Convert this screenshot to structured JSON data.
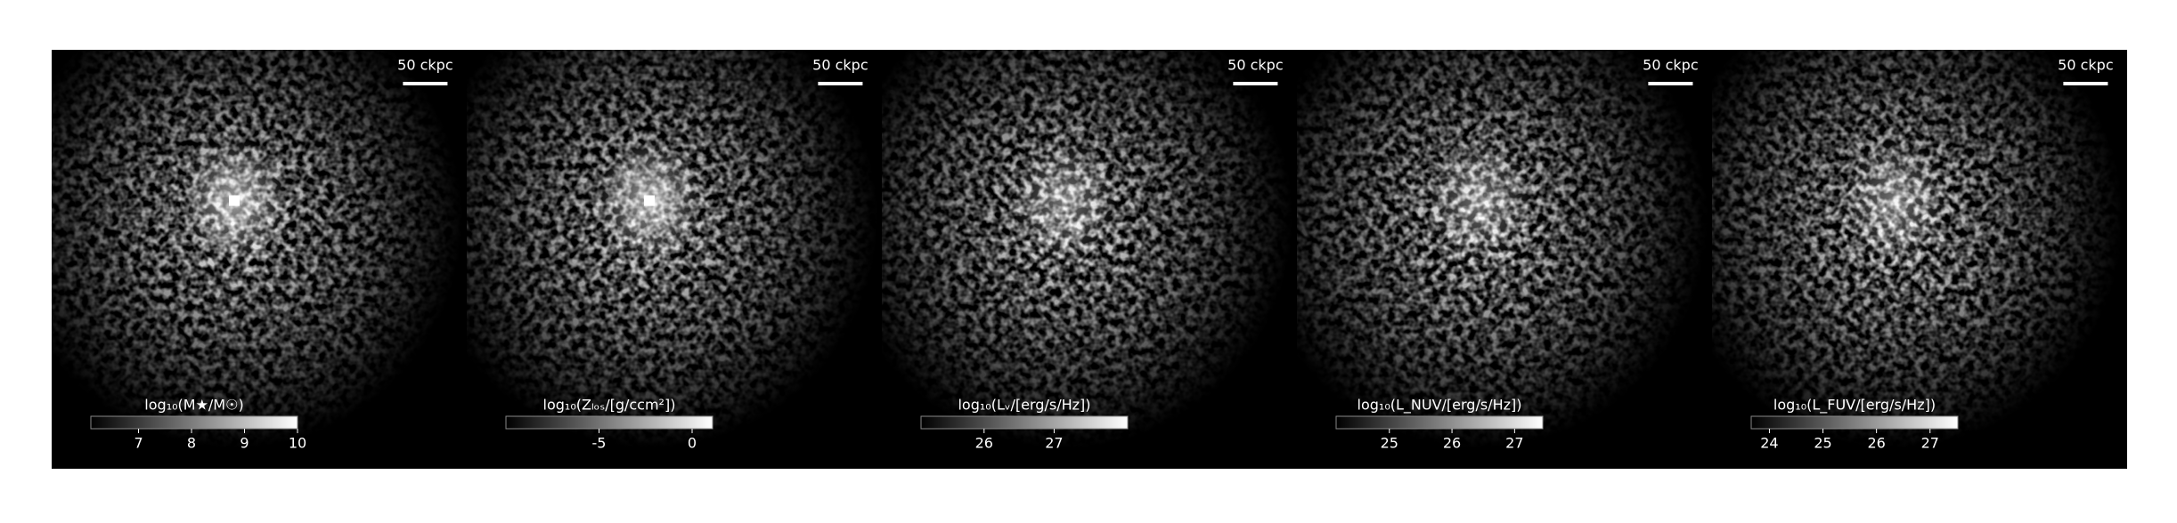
{
  "chart_data": [
    {
      "type": "image",
      "scale_label": "50 ckpc",
      "colorbar_label": "log₁₀(M★/M☉)",
      "clim": [
        6.1,
        10
      ],
      "cticks": [
        7,
        8,
        9,
        10
      ],
      "core": true
    },
    {
      "type": "image",
      "scale_label": "50 ckpc",
      "colorbar_label": "log₁₀(Zₗₒₛ/[g/ccm²])",
      "clim": [
        -10,
        1.1
      ],
      "cticks": [
        -5,
        0
      ],
      "core": true
    },
    {
      "type": "image",
      "scale_label": "50 ckpc",
      "colorbar_label": "log₁₀(Lᵥ/[erg/s/Hz])",
      "clim": [
        25.1,
        28.05
      ],
      "cticks": [
        26,
        27
      ],
      "core": false
    },
    {
      "type": "image",
      "scale_label": "50 ckpc",
      "colorbar_label": "log₁₀(L_NUV/[erg/s/Hz])",
      "clim": [
        24.15,
        27.45
      ],
      "cticks": [
        25,
        26,
        27
      ],
      "core": false
    },
    {
      "type": "image",
      "scale_label": "50 ckpc",
      "colorbar_label": "log₁₀(L_FUV/[erg/s/Hz])",
      "clim": [
        23.66,
        27.52
      ],
      "cticks": [
        24,
        25,
        26,
        27
      ],
      "core": false
    }
  ]
}
